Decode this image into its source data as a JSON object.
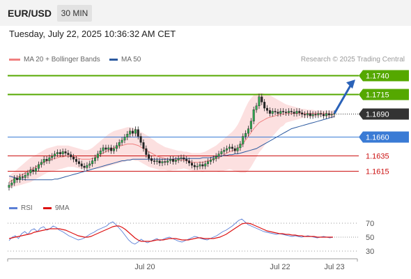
{
  "header": {
    "pair": "EUR/USD",
    "timeframe": "30 MIN"
  },
  "timestamp": "Tuesday, July 22, 2025 10:36:32 AM CET",
  "legend": {
    "bollinger_label": "MA 20 + Bollinger Bands",
    "ma50_label": "MA 50",
    "bollinger_color": "#f08080",
    "ma50_color": "#2c5aa0"
  },
  "copyright": "Research © 2025 Trading Central",
  "rsi_legend": {
    "rsi_label": "RSI",
    "ma_label": "9MA",
    "rsi_color": "#5b7fd6",
    "ma_color": "#dd1111"
  },
  "chart_data": [
    {
      "type": "candlestick",
      "symbol": "EUR/USD",
      "timeframe": "30 MIN",
      "ylim": [
        1.159,
        1.1752
      ],
      "levels": [
        {
          "label": "1.1740",
          "value": 1.174,
          "color": "#55a800",
          "kind": "resistance-target"
        },
        {
          "label": "1.1715",
          "value": 1.1715,
          "color": "#55a800",
          "kind": "resistance"
        },
        {
          "label": "1.1690",
          "value": 1.169,
          "color": "#333333",
          "kind": "current-price"
        },
        {
          "label": "1.1660",
          "value": 1.166,
          "color": "#3a7bd5",
          "kind": "pivot"
        },
        {
          "label": "1.1635",
          "value": 1.1635,
          "color": "#cc1111",
          "kind": "support"
        },
        {
          "label": "1.1615",
          "value": 1.1615,
          "color": "#cc1111",
          "kind": "support"
        }
      ],
      "x_ticks": [
        "Jul 20",
        "Jul 22",
        "Jul 23"
      ],
      "close": [
        1.1596,
        1.1599,
        1.1605,
        1.1603,
        1.1607,
        1.1606,
        1.1609,
        1.1612,
        1.1616,
        1.1614,
        1.1618,
        1.1623,
        1.1626,
        1.163,
        1.1628,
        1.1632,
        1.1634,
        1.1637,
        1.1639,
        1.1637,
        1.164,
        1.1638,
        1.1636,
        1.1633,
        1.163,
        1.1627,
        1.1624,
        1.1621,
        1.1619,
        1.1622,
        1.1624,
        1.1628,
        1.1632,
        1.1637,
        1.1641,
        1.1645,
        1.1643,
        1.1645,
        1.1641,
        1.1644,
        1.1648,
        1.1652,
        1.1655,
        1.1659,
        1.1663,
        1.1667,
        1.1664,
        1.1669,
        1.166,
        1.1652,
        1.1644,
        1.1636,
        1.1631,
        1.1628,
        1.1627,
        1.1628,
        1.1625,
        1.1627,
        1.1626,
        1.1628,
        1.163,
        1.1627,
        1.1629,
        1.1631,
        1.1632,
        1.163,
        1.1628,
        1.1625,
        1.1622,
        1.162,
        1.1621,
        1.1623,
        1.1621,
        1.1624,
        1.1627,
        1.1629,
        1.1631,
        1.1634,
        1.1637,
        1.164,
        1.1642,
        1.1644,
        1.1646,
        1.1644,
        1.1641,
        1.1645,
        1.165,
        1.166,
        1.1664,
        1.167,
        1.168,
        1.1695,
        1.17,
        1.1712,
        1.1705,
        1.1697,
        1.1694,
        1.169,
        1.1693,
        1.1692,
        1.169,
        1.1693,
        1.1692,
        1.1691,
        1.1693,
        1.1692,
        1.169,
        1.1693,
        1.1691,
        1.1689,
        1.1688,
        1.169,
        1.1687,
        1.1689,
        1.1688,
        1.169,
        1.1689,
        1.1687,
        1.169,
        1.1688,
        1.1689,
        1.169
      ],
      "ma20": [
        1.16,
        1.1602,
        1.1604,
        1.1606,
        1.1608,
        1.161,
        1.1612,
        1.1614,
        1.1616,
        1.1618,
        1.162,
        1.1622,
        1.1624,
        1.1626,
        1.1628,
        1.1629,
        1.163,
        1.1631,
        1.1632,
        1.1633,
        1.1633,
        1.1634,
        1.1634,
        1.1634,
        1.1633,
        1.1632,
        1.1631,
        1.163,
        1.163,
        1.163,
        1.163,
        1.1631,
        1.1632,
        1.1634,
        1.1636,
        1.1638,
        1.164,
        1.1642,
        1.1643,
        1.1645,
        1.1646,
        1.1647,
        1.1648,
        1.1649,
        1.165,
        1.165,
        1.165,
        1.1649,
        1.1648,
        1.1646,
        1.1644,
        1.1642,
        1.164,
        1.1638,
        1.1636,
        1.1634,
        1.1633,
        1.1632,
        1.1631,
        1.163,
        1.163,
        1.163,
        1.1629,
        1.1629,
        1.1629,
        1.1629,
        1.1628,
        1.1627,
        1.1626,
        1.1626,
        1.1626,
        1.1626,
        1.1626,
        1.1627,
        1.1628,
        1.1629,
        1.163,
        1.1631,
        1.1632,
        1.1634,
        1.1636,
        1.1638,
        1.164,
        1.1641,
        1.1642,
        1.1644,
        1.1647,
        1.1651,
        1.1655,
        1.166,
        1.1665,
        1.167,
        1.1674,
        1.1678,
        1.168,
        1.1682,
        1.1684,
        1.1685,
        1.1686,
        1.1687,
        1.1688,
        1.1689,
        1.1689,
        1.169,
        1.169,
        1.169,
        1.169,
        1.169,
        1.169,
        1.169,
        1.169,
        1.169,
        1.169,
        1.169,
        1.169,
        1.169,
        1.169,
        1.169,
        1.169,
        1.1689,
        1.1689,
        1.1689
      ],
      "bb_upper": [
        1.1608,
        1.1611,
        1.1614,
        1.1617,
        1.162,
        1.1623,
        1.1626,
        1.1629,
        1.1632,
        1.1634,
        1.1636,
        1.1638,
        1.164,
        1.1642,
        1.1644,
        1.1645,
        1.1646,
        1.1647,
        1.1648,
        1.1648,
        1.1648,
        1.1648,
        1.1648,
        1.1647,
        1.1646,
        1.1645,
        1.1644,
        1.1643,
        1.1642,
        1.1642,
        1.1643,
        1.1645,
        1.1648,
        1.1651,
        1.1654,
        1.1657,
        1.166,
        1.1663,
        1.1665,
        1.1667,
        1.1668,
        1.1669,
        1.167,
        1.1671,
        1.1672,
        1.1672,
        1.1671,
        1.167,
        1.1668,
        1.1666,
        1.1664,
        1.1662,
        1.166,
        1.1657,
        1.1655,
        1.1652,
        1.165,
        1.1648,
        1.1646,
        1.1645,
        1.1644,
        1.1643,
        1.1642,
        1.1641,
        1.1641,
        1.164,
        1.164,
        1.1639,
        1.1638,
        1.1638,
        1.1638,
        1.1638,
        1.1639,
        1.164,
        1.1642,
        1.1644,
        1.1646,
        1.1648,
        1.1651,
        1.1654,
        1.1657,
        1.166,
        1.1663,
        1.1666,
        1.167,
        1.1675,
        1.1682,
        1.169,
        1.1698,
        1.1705,
        1.171,
        1.1714,
        1.1716,
        1.1717,
        1.1717,
        1.1716,
        1.1715,
        1.1714,
        1.1712,
        1.171,
        1.1708,
        1.1706,
        1.1704,
        1.1702,
        1.1701,
        1.17,
        1.1699,
        1.1698,
        1.1697,
        1.1696,
        1.1696,
        1.1695,
        1.1695,
        1.1695,
        1.1694,
        1.1694,
        1.1694,
        1.1694,
        1.1694,
        1.1694,
        1.1694,
        1.1694
      ],
      "bb_lower": [
        1.1592,
        1.1593,
        1.1594,
        1.1595,
        1.1596,
        1.1597,
        1.1598,
        1.1599,
        1.16,
        1.1602,
        1.1604,
        1.1606,
        1.1608,
        1.161,
        1.1612,
        1.1613,
        1.1614,
        1.1615,
        1.1616,
        1.1617,
        1.1618,
        1.1619,
        1.162,
        1.162,
        1.162,
        1.1619,
        1.1618,
        1.1617,
        1.1617,
        1.1617,
        1.1617,
        1.1617,
        1.1617,
        1.1617,
        1.1618,
        1.1619,
        1.162,
        1.1621,
        1.1622,
        1.1623,
        1.1624,
        1.1625,
        1.1626,
        1.1627,
        1.1628,
        1.1628,
        1.1629,
        1.1628,
        1.1628,
        1.1626,
        1.1624,
        1.1622,
        1.162,
        1.1619,
        1.1618,
        1.1617,
        1.1616,
        1.1616,
        1.1616,
        1.1615,
        1.1615,
        1.1616,
        1.1616,
        1.1617,
        1.1617,
        1.1618,
        1.1617,
        1.1616,
        1.1615,
        1.1614,
        1.1614,
        1.1614,
        1.1613,
        1.1614,
        1.1614,
        1.1614,
        1.1614,
        1.1614,
        1.1613,
        1.1614,
        1.1615,
        1.1616,
        1.1617,
        1.1616,
        1.1614,
        1.1613,
        1.1612,
        1.1612,
        1.1612,
        1.1615,
        1.162,
        1.1626,
        1.1632,
        1.1639,
        1.1643,
        1.1648,
        1.1653,
        1.1656,
        1.166,
        1.1664,
        1.1668,
        1.1672,
        1.1674,
        1.1678,
        1.1679,
        1.168,
        1.1681,
        1.1682,
        1.1683,
        1.1684,
        1.1684,
        1.1685,
        1.1685,
        1.1685,
        1.1686,
        1.1686,
        1.1686,
        1.1686,
        1.1686,
        1.1684,
        1.1684,
        1.1684
      ],
      "ma50": [
        1.1608,
        1.1607,
        1.1606,
        1.1605,
        1.1604,
        1.1604,
        1.1603,
        1.1603,
        1.1603,
        1.1603,
        1.1603,
        1.1603,
        1.1603,
        1.1603,
        1.1603,
        1.1603,
        1.1603,
        1.1604,
        1.1604,
        1.1605,
        1.1606,
        1.1607,
        1.1608,
        1.1609,
        1.161,
        1.1611,
        1.1612,
        1.1613,
        1.1614,
        1.1615,
        1.1616,
        1.1617,
        1.1618,
        1.1619,
        1.162,
        1.1621,
        1.1622,
        1.1623,
        1.1624,
        1.1625,
        1.1626,
        1.1627,
        1.1628,
        1.1628,
        1.1629,
        1.1629,
        1.163,
        1.163,
        1.163,
        1.163,
        1.163,
        1.163,
        1.163,
        1.163,
        1.163,
        1.163,
        1.163,
        1.163,
        1.163,
        1.163,
        1.163,
        1.163,
        1.1631,
        1.1631,
        1.1631,
        1.1631,
        1.1631,
        1.1631,
        1.1631,
        1.1631,
        1.1631,
        1.1631,
        1.1632,
        1.1632,
        1.1632,
        1.1632,
        1.1633,
        1.1633,
        1.1634,
        1.1634,
        1.1635,
        1.1635,
        1.1636,
        1.1636,
        1.1637,
        1.1637,
        1.1638,
        1.1639,
        1.164,
        1.1641,
        1.1642,
        1.1643,
        1.1644,
        1.1646,
        1.1648,
        1.165,
        1.1652,
        1.1654,
        1.1656,
        1.1658,
        1.166,
        1.1662,
        1.1664,
        1.1666,
        1.1668,
        1.167,
        1.1671,
        1.1672,
        1.1673,
        1.1674,
        1.1675,
        1.1676,
        1.1677,
        1.1678,
        1.1679,
        1.168,
        1.1681,
        1.1682,
        1.1683,
        1.1684,
        1.1685,
        1.1686
      ]
    },
    {
      "type": "line",
      "name": "RSI panel",
      "ylim": [
        20,
        80
      ],
      "y_ticks": [
        "70",
        "50",
        "30"
      ],
      "guide_levels": [
        70,
        30
      ],
      "series": [
        {
          "name": "RSI",
          "values": [
            45,
            50,
            52,
            48,
            55,
            58,
            54,
            60,
            62,
            58,
            63,
            65,
            60,
            62,
            66,
            64,
            60,
            58,
            55,
            52,
            50,
            48,
            46,
            47,
            49,
            52,
            55,
            57,
            60,
            62,
            64,
            66,
            70,
            72,
            68,
            63,
            58,
            52,
            46,
            42,
            40,
            43,
            47,
            44,
            42,
            44,
            46,
            48,
            45,
            47,
            49,
            50,
            48,
            46,
            44,
            43,
            45,
            47,
            49,
            51,
            50,
            48,
            47,
            46,
            48,
            50,
            52,
            55,
            58,
            60,
            63,
            66,
            70,
            74,
            76,
            72,
            68,
            66,
            64,
            62,
            60,
            58,
            57,
            56,
            55,
            54,
            55,
            54,
            53,
            52,
            51,
            52,
            51,
            50,
            51,
            52,
            51,
            50,
            49,
            50,
            51,
            50,
            49,
            50
          ]
        },
        {
          "name": "9MA",
          "values": [
            48,
            49,
            50,
            51,
            52,
            53,
            54,
            55,
            57,
            58,
            59,
            60,
            61,
            62,
            62,
            62,
            62,
            61,
            60,
            58,
            56,
            54,
            52,
            51,
            50,
            50,
            51,
            53,
            55,
            57,
            59,
            61,
            63,
            65,
            66,
            66,
            64,
            61,
            57,
            53,
            49,
            46,
            44,
            44,
            44,
            44,
            45,
            46,
            46,
            46,
            47,
            48,
            48,
            48,
            47,
            46,
            46,
            46,
            47,
            48,
            49,
            49,
            48,
            48,
            48,
            48,
            49,
            50,
            52,
            54,
            57,
            60,
            63,
            66,
            69,
            70,
            70,
            69,
            67,
            65,
            63,
            61,
            59,
            58,
            57,
            56,
            55,
            55,
            54,
            54,
            53,
            53,
            52,
            52,
            51,
            51,
            51,
            51,
            50,
            50,
            50,
            50,
            50,
            50
          ]
        }
      ]
    }
  ]
}
